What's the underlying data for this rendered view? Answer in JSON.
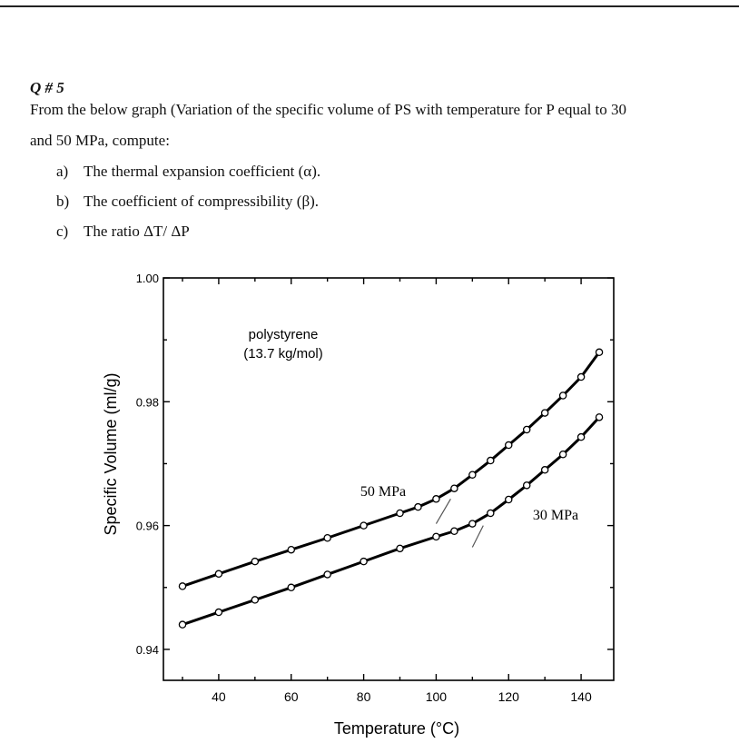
{
  "question": {
    "number": "Q # 5",
    "intro_line1": "From the below graph (Variation of the specific volume of PS with temperature for P equal to 30",
    "intro_line2": "and 50 MPa, compute:",
    "items": [
      {
        "marker": "a)",
        "text": "The thermal expansion coefficient (α)."
      },
      {
        "marker": "b)",
        "text": "The coefficient of compressibility (β)."
      },
      {
        "marker": "c)",
        "text": "The ratio ΔT/ ΔP"
      }
    ]
  },
  "chart_data": {
    "type": "scatter",
    "xlabel": "Temperature (°C)",
    "ylabel": "Specific Volume (ml/g)",
    "xlim": [
      25,
      150
    ],
    "ylim": [
      0.935,
      1.0
    ],
    "x_ticks": [
      40,
      60,
      80,
      100,
      120,
      140
    ],
    "y_ticks": [
      "0.94",
      "0.96",
      "0.98",
      "1.00"
    ],
    "annotation": [
      "polystyrene",
      "(13.7 kg/mol)"
    ],
    "series": [
      {
        "name": "50 MPa",
        "points": [
          [
            30,
            0.9502
          ],
          [
            40,
            0.9522
          ],
          [
            50,
            0.9542
          ],
          [
            60,
            0.9561
          ],
          [
            70,
            0.958
          ],
          [
            80,
            0.96
          ],
          [
            90,
            0.962
          ],
          [
            95,
            0.963
          ],
          [
            100,
            0.9643
          ],
          [
            105,
            0.966
          ],
          [
            110,
            0.9682
          ],
          [
            115,
            0.9705
          ],
          [
            120,
            0.973
          ],
          [
            125,
            0.9755
          ],
          [
            130,
            0.9782
          ],
          [
            135,
            0.981
          ],
          [
            140,
            0.984
          ],
          [
            145,
            0.988
          ]
        ]
      },
      {
        "name": "30 MPa",
        "points": [
          [
            30,
            0.944
          ],
          [
            40,
            0.946
          ],
          [
            50,
            0.948
          ],
          [
            60,
            0.95
          ],
          [
            70,
            0.9521
          ],
          [
            80,
            0.9542
          ],
          [
            90,
            0.9563
          ],
          [
            100,
            0.9582
          ],
          [
            105,
            0.9591
          ],
          [
            110,
            0.9603
          ],
          [
            115,
            0.962
          ],
          [
            120,
            0.9642
          ],
          [
            125,
            0.9665
          ],
          [
            130,
            0.969
          ],
          [
            135,
            0.9715
          ],
          [
            140,
            0.9743
          ],
          [
            145,
            0.9775
          ]
        ]
      }
    ],
    "tangent_lines": [
      {
        "x": [
          100,
          104
        ],
        "y": [
          0.9603,
          0.9643
        ]
      },
      {
        "x": [
          110,
          113
        ],
        "y": [
          0.9565,
          0.96
        ]
      }
    ]
  }
}
